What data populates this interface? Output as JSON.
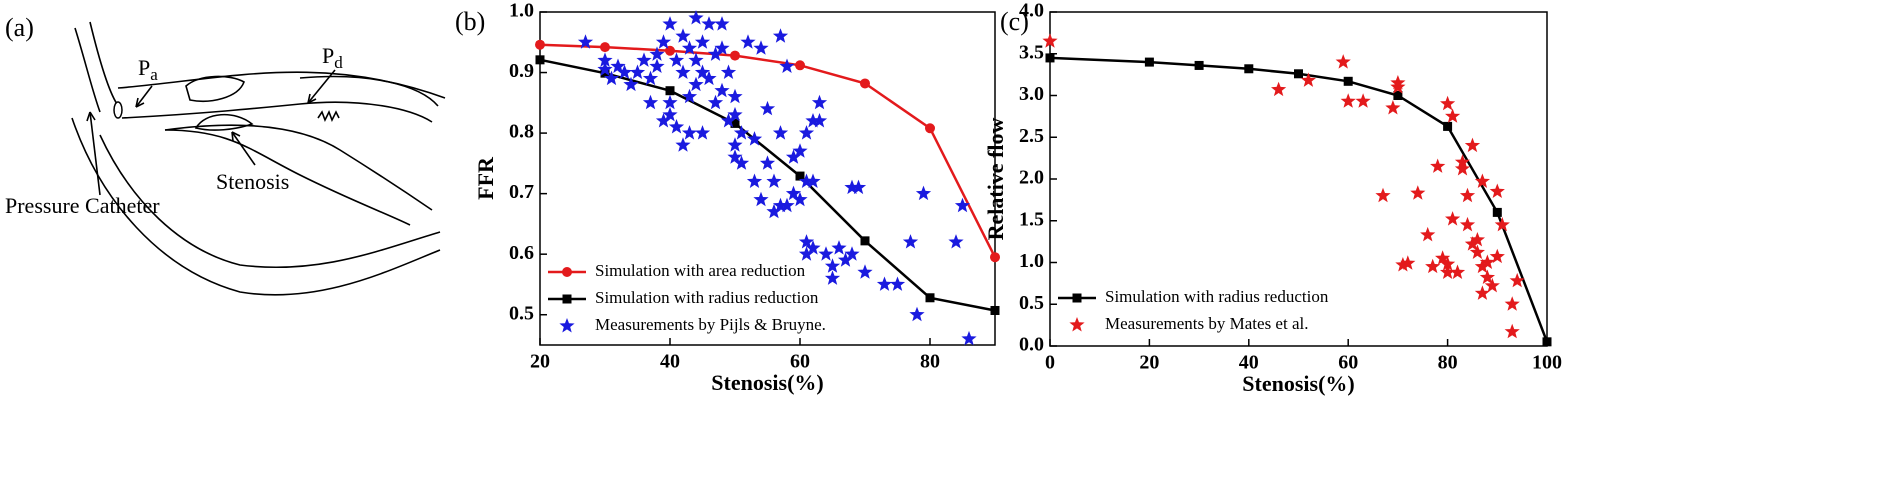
{
  "diagram": {
    "label": "(a)",
    "pa": {
      "main": "P",
      "sub": "a"
    },
    "pd": {
      "main": "P",
      "sub": "d"
    },
    "stenosis": "Stenosis",
    "catheter": "Pressure Catheter"
  },
  "chart_data": [
    {
      "type": "line",
      "label": "(b)",
      "xlabel": "Stenosis(%)",
      "ylabel": "FFR",
      "xlim": [
        20,
        90
      ],
      "ylim": [
        0.45,
        1.0
      ],
      "xticks": [
        20,
        40,
        60,
        80
      ],
      "yticks": [
        0.5,
        0.6,
        0.7,
        0.8,
        0.9,
        {
          "value": 1.0,
          "label": "1.0"
        }
      ],
      "legend": "lower left",
      "series": [
        {
          "name": "Simulation with area reduction",
          "color": "#e31a1c",
          "marker": "circle",
          "type": "line",
          "x": [
            20,
            30,
            40,
            50,
            60,
            70,
            80,
            90
          ],
          "values": [
            0.946,
            0.942,
            0.936,
            0.928,
            0.912,
            0.882,
            0.808,
            0.595
          ]
        },
        {
          "name": "Simulation with radius reduction",
          "color": "#000000",
          "marker": "square",
          "type": "line",
          "x": [
            20,
            30,
            40,
            50,
            60,
            70,
            80,
            90
          ],
          "values": [
            0.921,
            0.899,
            0.87,
            0.816,
            0.729,
            0.622,
            0.528,
            0.507
          ]
        },
        {
          "name": "Measurements by Pijls & Bruyne.",
          "color": "#1a1adf",
          "marker": "star",
          "type": "scatter",
          "x": [
            27,
            30,
            30,
            31,
            32,
            33,
            34,
            35,
            36,
            37,
            37,
            38,
            38,
            39,
            39,
            40,
            40,
            40,
            41,
            41,
            42,
            42,
            42,
            43,
            43,
            43,
            44,
            44,
            44,
            45,
            45,
            45,
            46,
            46,
            47,
            47,
            48,
            48,
            48,
            49,
            49,
            50,
            50,
            50,
            50,
            51,
            51,
            52,
            53,
            53,
            54,
            54,
            55,
            55,
            56,
            56,
            57,
            57,
            57,
            58,
            58,
            59,
            59,
            60,
            60,
            61,
            61,
            61,
            61,
            62,
            62,
            62,
            63,
            63,
            64,
            65,
            65,
            66,
            67,
            68,
            68,
            69,
            70,
            73,
            75,
            77,
            78,
            79,
            84,
            85,
            86
          ],
          "values": [
            0.95,
            0.92,
            0.905,
            0.89,
            0.91,
            0.9,
            0.88,
            0.9,
            0.92,
            0.85,
            0.89,
            0.93,
            0.91,
            0.95,
            0.82,
            0.98,
            0.85,
            0.83,
            0.92,
            0.81,
            0.96,
            0.9,
            0.78,
            0.94,
            0.86,
            0.8,
            0.99,
            0.92,
            0.88,
            0.95,
            0.9,
            0.8,
            0.98,
            0.89,
            0.93,
            0.85,
            0.98,
            0.94,
            0.87,
            0.9,
            0.82,
            0.86,
            0.83,
            0.78,
            0.76,
            0.75,
            0.8,
            0.95,
            0.72,
            0.79,
            0.69,
            0.94,
            0.84,
            0.75,
            0.72,
            0.67,
            0.96,
            0.8,
            0.68,
            0.91,
            0.68,
            0.76,
            0.7,
            0.69,
            0.77,
            0.8,
            0.72,
            0.62,
            0.6,
            0.82,
            0.72,
            0.61,
            0.85,
            0.82,
            0.6,
            0.56,
            0.58,
            0.61,
            0.59,
            0.6,
            0.71,
            0.71,
            0.57,
            0.55,
            0.55,
            0.62,
            0.5,
            0.7,
            0.62,
            0.68,
            0.46
          ]
        }
      ]
    },
    {
      "type": "line",
      "label": "(c)",
      "xlabel": "Stenosis(%)",
      "ylabel": "Relative flow",
      "xlim": [
        0,
        100
      ],
      "ylim": [
        0,
        4.0
      ],
      "xticks": [
        0,
        20,
        40,
        60,
        80,
        100
      ],
      "yticks": [
        {
          "value": 0,
          "label": "0.0"
        },
        0.5,
        {
          "value": 1,
          "label": "1.0"
        },
        1.5,
        {
          "value": 2,
          "label": "2.0"
        },
        2.5,
        {
          "value": 3,
          "label": "3.0"
        },
        3.5,
        {
          "value": 4,
          "label": "4.0"
        }
      ],
      "legend": "lower left",
      "series": [
        {
          "name": "Simulation with radius reduction",
          "color": "#000000",
          "marker": "square",
          "type": "line",
          "x": [
            0,
            20,
            30,
            40,
            50,
            60,
            70,
            80,
            90,
            100
          ],
          "values": [
            3.45,
            3.4,
            3.36,
            3.32,
            3.26,
            3.17,
            3.0,
            2.63,
            1.6,
            0.05
          ]
        },
        {
          "name": "Measurements by Mates et al.",
          "color": "#e31a1c",
          "marker": "star",
          "type": "scatter",
          "x": [
            0,
            46,
            52,
            59,
            60,
            63,
            69,
            70,
            70,
            67,
            71,
            72,
            74,
            76,
            77,
            78,
            79,
            80,
            80,
            80,
            81,
            81,
            82,
            83,
            83,
            84,
            84,
            85,
            85,
            86,
            86,
            87,
            87,
            87,
            88,
            88,
            89,
            90,
            90,
            91,
            93,
            93,
            94
          ],
          "values": [
            3.65,
            3.07,
            3.18,
            3.4,
            2.93,
            2.93,
            2.85,
            3.15,
            3.1,
            1.8,
            0.97,
            0.99,
            1.83,
            1.33,
            0.95,
            2.15,
            1.05,
            0.98,
            0.88,
            2.9,
            1.52,
            2.75,
            0.88,
            2.2,
            2.12,
            1.45,
            1.8,
            1.22,
            2.4,
            1.12,
            1.27,
            0.63,
            0.95,
            1.97,
            0.82,
            1.0,
            0.72,
            1.07,
            1.85,
            1.45,
            0.5,
            0.17,
            0.78
          ]
        }
      ]
    }
  ]
}
